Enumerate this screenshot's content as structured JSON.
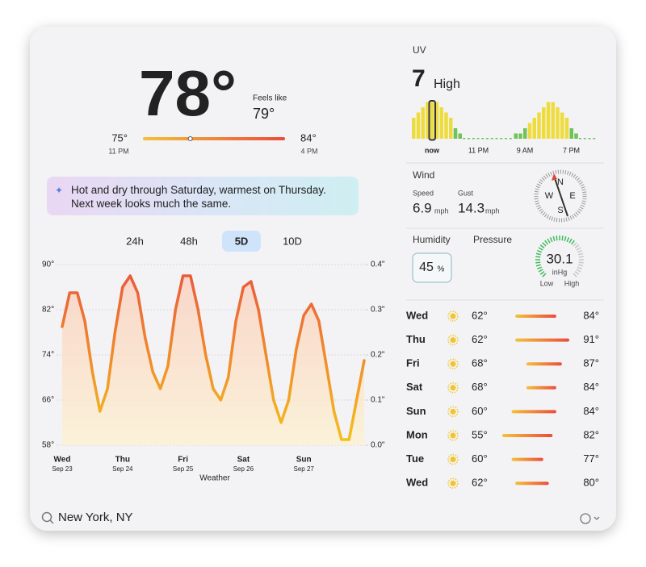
{
  "current": {
    "temperature": {
      "value": 78,
      "label": "78°"
    },
    "feels_like_label": "Feels like",
    "feels_like": "79°",
    "low": {
      "value": 75,
      "label": "75°"
    },
    "low_time": "11 PM",
    "high": {
      "value": 84,
      "label": "84°"
    },
    "high_time": "4 PM"
  },
  "summary": "Hot and dry through Saturday, warmest on Thursday. Next week looks much the same.",
  "tabs": [
    "24h",
    "48h",
    "5D",
    "10D"
  ],
  "selected_tab": 2,
  "chart": {
    "ylim": [
      58,
      90
    ],
    "yticks": [
      {
        "value": 90,
        "label": "90°"
      },
      {
        "value": 82,
        "label": "82°"
      },
      {
        "value": 74,
        "label": "74°"
      },
      {
        "value": 66,
        "label": "66°"
      },
      {
        "value": 58,
        "label": "58°"
      }
    ],
    "y2lim": [
      0,
      0.4
    ],
    "y2ticks": [
      {
        "value": 0.4,
        "label": "0.4\""
      },
      {
        "value": 0.3,
        "label": "0.3\""
      },
      {
        "value": 0.2,
        "label": "0.2\""
      },
      {
        "value": 0.1,
        "label": "0.1\""
      },
      {
        "value": 0,
        "label": "0.0\""
      }
    ],
    "days": [
      {
        "day": "Wed",
        "date": "Sep 23"
      },
      {
        "day": "Thu",
        "date": "Sep 24"
      },
      {
        "day": "Fri",
        "date": "Sep 25"
      },
      {
        "day": "Sat",
        "date": "Sep 26"
      },
      {
        "day": "Sun",
        "date": "Sep 27"
      }
    ],
    "temperature": [
      79,
      85,
      85,
      80,
      71,
      64,
      68,
      78,
      86,
      88,
      85,
      77,
      71,
      68,
      72,
      82,
      88,
      88,
      82,
      74,
      68,
      66,
      70,
      80,
      86,
      87,
      82,
      74,
      66,
      62,
      66,
      75,
      81,
      83,
      80,
      72,
      64,
      59,
      59,
      66,
      73
    ],
    "caption": "Weather"
  },
  "uv": {
    "label": "UV",
    "index": "7",
    "level": "High",
    "now_index": 4,
    "hourly": [
      4,
      5,
      6,
      7,
      7,
      7,
      6,
      5,
      4,
      2,
      1,
      0,
      0,
      0,
      0,
      0,
      0,
      0,
      0,
      0,
      0,
      0,
      1,
      1,
      2,
      3,
      4,
      5,
      6,
      7,
      7,
      6,
      5,
      4,
      2,
      1,
      0,
      0,
      0,
      0
    ],
    "time_labels": [
      "now",
      "11 PM",
      "9 AM",
      "7 PM"
    ],
    "colors": {
      "low": "#72c25a",
      "moderate": "#eedc3e"
    }
  },
  "wind": {
    "label": "Wind",
    "speed_label": "Speed",
    "speed": "6.9",
    "speed_unit": "mph",
    "gust_label": "Gust",
    "gust": "14.3",
    "gust_unit": "mph",
    "compass": {
      "n": "N",
      "e": "E",
      "s": "S",
      "w": "W"
    }
  },
  "humidity": {
    "label": "Humidity",
    "value": "45",
    "unit": "%"
  },
  "pressure": {
    "label": "Pressure",
    "value": "30.1",
    "unit": "inHg",
    "low": "Low",
    "high": "High"
  },
  "daily": [
    {
      "day": "Wed",
      "low": {
        "value": 62,
        "label": "62°"
      },
      "high": {
        "value": 84,
        "label": "84°"
      }
    },
    {
      "day": "Thu",
      "low": {
        "value": 62,
        "label": "62°"
      },
      "high": {
        "value": 91,
        "label": "91°"
      }
    },
    {
      "day": "Fri",
      "low": {
        "value": 68,
        "label": "68°"
      },
      "high": {
        "value": 87,
        "label": "87°"
      }
    },
    {
      "day": "Sat",
      "low": {
        "value": 68,
        "label": "68°"
      },
      "high": {
        "value": 84,
        "label": "84°"
      }
    },
    {
      "day": "Sun",
      "low": {
        "value": 60,
        "label": "60°"
      },
      "high": {
        "value": 84,
        "label": "84°"
      }
    },
    {
      "day": "Mon",
      "low": {
        "value": 55,
        "label": "55°"
      },
      "high": {
        "value": 82,
        "label": "82°"
      }
    },
    {
      "day": "Tue",
      "low": {
        "value": 60,
        "label": "60°"
      },
      "high": {
        "value": 77,
        "label": "77°"
      }
    },
    {
      "day": "Wed",
      "low": {
        "value": 62,
        "label": "62°"
      },
      "high": {
        "value": 80,
        "label": "80°"
      }
    }
  ],
  "location": "New York, NY"
}
